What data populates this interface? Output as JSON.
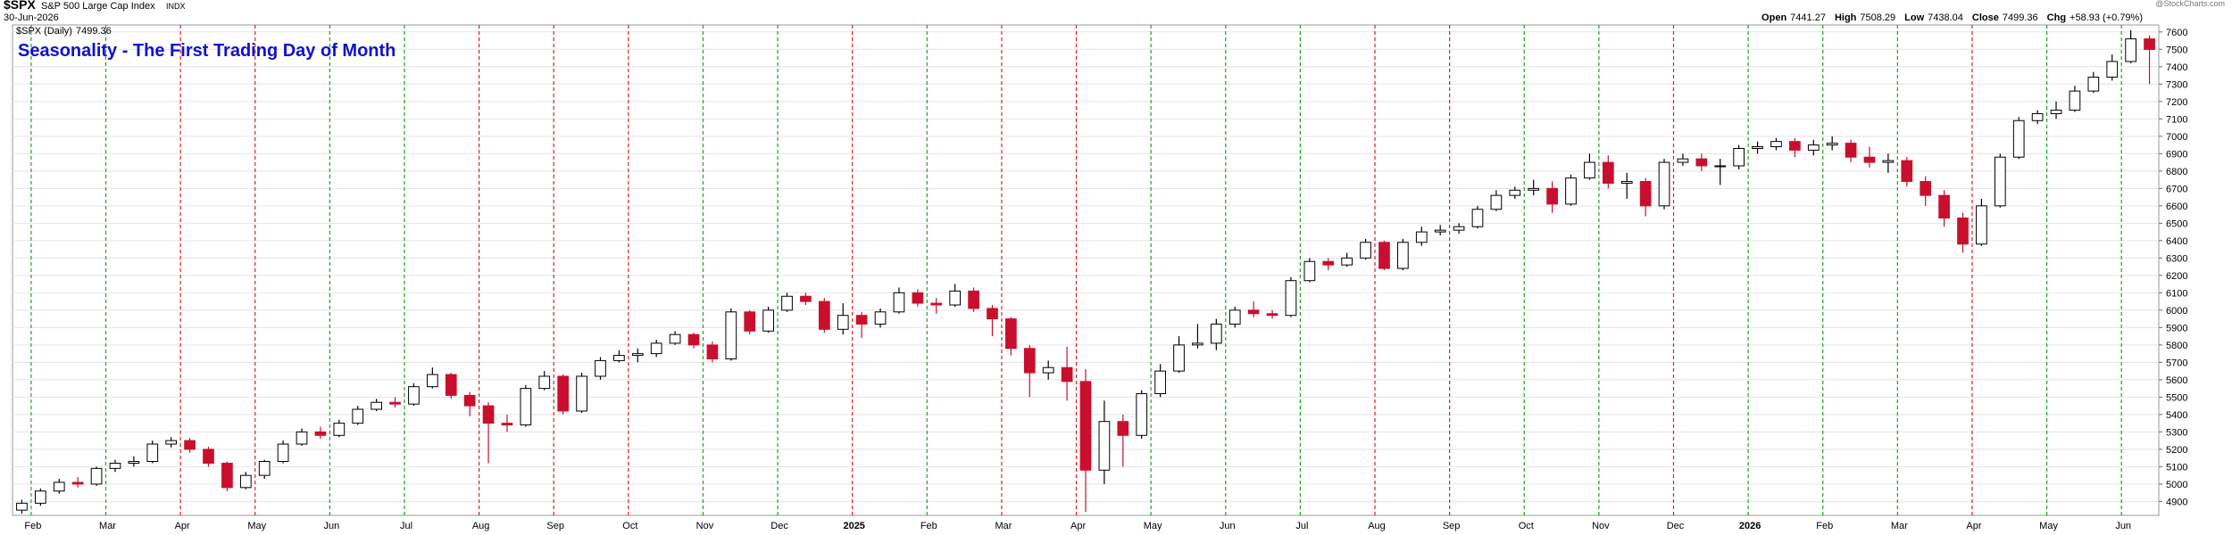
{
  "chart_data": {
    "type": "candlestick",
    "symbol": "$SPX",
    "name": "S&P 500 Large Cap Index",
    "exchange": "INDX",
    "date": "30-Jun-2026",
    "watermark": "@StockCharts.com",
    "legend_label": "$SPX (Daily)",
    "legend_value": 7499.36,
    "title": "Seasonality - The First Trading Day of Month",
    "stats": [
      {
        "label": "Open",
        "value": 7441.27
      },
      {
        "label": "High",
        "value": 7508.29
      },
      {
        "label": "Low",
        "value": 7438.04
      },
      {
        "label": "Close",
        "value": 7499.36
      },
      {
        "label": "Chg",
        "value": "+58.93 (+0.79%)"
      }
    ],
    "categories": [
      null,
      "Feb",
      null,
      null,
      null,
      "Mar",
      null,
      null,
      null,
      "Apr",
      null,
      null,
      null,
      "May",
      null,
      null,
      null,
      "Jun",
      null,
      null,
      null,
      "Jul",
      null,
      null,
      null,
      "Aug",
      null,
      null,
      null,
      "Sep",
      null,
      null,
      null,
      "Oct",
      null,
      null,
      null,
      "Nov",
      null,
      null,
      null,
      "Dec",
      null,
      null,
      null,
      "2025",
      null,
      null,
      null,
      "Feb",
      null,
      null,
      null,
      "Mar",
      null,
      null,
      null,
      "Apr",
      null,
      null,
      null,
      "May",
      null,
      null,
      null,
      "Jun",
      null,
      null,
      null,
      "Jul",
      null,
      null,
      null,
      "Aug",
      null,
      null,
      null,
      "Sep",
      null,
      null,
      null,
      "Oct",
      null,
      null,
      null,
      "Nov",
      null,
      null,
      null,
      "Dec",
      null,
      null,
      null,
      "2026",
      null,
      null,
      null,
      "Feb",
      null,
      null,
      null,
      "Mar",
      null,
      null,
      null,
      "Apr",
      null,
      null,
      null,
      "May",
      null,
      null,
      null,
      "Jun",
      null
    ],
    "month_line_colors": [
      "#1fa31f",
      "#1fa31f",
      "#e02020",
      "#e02020",
      "#1fa31f",
      "#1fa31f",
      "#e02020",
      "#e02020",
      "#e02020",
      "#1fa31f",
      "#1fa31f",
      "#e02020",
      "#1fa31f",
      "#e02020",
      "#e02020",
      "#1fa31f",
      "#1fa31f",
      "#1fa31f",
      "#e02020",
      "#e02020",
      "#1fa31f",
      "#1fa31f",
      "#e02020",
      "#1fa31f",
      "#1fa31f",
      "#1fa31f",
      "#e02020",
      "#1fa31f",
      "#1fa31f"
    ],
    "open": [
      4850,
      4890,
      4960,
      5010,
      5000,
      5090,
      5120,
      5130,
      5230,
      5250,
      5200,
      5120,
      4980,
      5050,
      5130,
      5230,
      5300,
      5280,
      5350,
      5430,
      5470,
      5460,
      5560,
      5630,
      5510,
      5450,
      5350,
      5340,
      5550,
      5620,
      5420,
      5620,
      5710,
      5740,
      5750,
      5810,
      5860,
      5800,
      5720,
      5990,
      5880,
      6000,
      6080,
      6050,
      5890,
      5970,
      5920,
      5990,
      6100,
      6040,
      6030,
      6110,
      6010,
      5950,
      5780,
      5640,
      5670,
      5590,
      5080,
      5360,
      5280,
      5520,
      5650,
      5800,
      5810,
      5920,
      6000,
      5980,
      5970,
      6170,
      6280,
      6260,
      6300,
      6390,
      6240,
      6390,
      6450,
      6460,
      6480,
      6580,
      6660,
      6690,
      6700,
      6610,
      6760,
      6850,
      6730,
      6740,
      6600,
      6850,
      6870,
      6830,
      6830,
      6930,
      6940,
      6970,
      6920,
      6950,
      6960,
      6880,
      6850,
      6860,
      6740,
      6660,
      6530,
      6380,
      6600,
      6880,
      7090,
      7130,
      7150,
      7260,
      7340,
      7430,
      7560
    ],
    "high": [
      4910,
      4975,
      5030,
      5040,
      5100,
      5140,
      5160,
      5250,
      5270,
      5265,
      5215,
      5130,
      5070,
      5140,
      5250,
      5320,
      5330,
      5370,
      5450,
      5490,
      5500,
      5580,
      5670,
      5640,
      5530,
      5470,
      5400,
      5570,
      5650,
      5630,
      5640,
      5730,
      5770,
      5780,
      5830,
      5880,
      5870,
      5820,
      6010,
      6000,
      6020,
      6100,
      6100,
      6070,
      6040,
      5990,
      6010,
      6130,
      6120,
      6070,
      6150,
      6130,
      6030,
      5960,
      5800,
      5710,
      5790,
      5660,
      5480,
      5400,
      5540,
      5690,
      5850,
      5920,
      5950,
      6020,
      6050,
      6000,
      6190,
      6300,
      6300,
      6330,
      6410,
      6400,
      6410,
      6480,
      6490,
      6500,
      6600,
      6690,
      6710,
      6750,
      6740,
      6780,
      6900,
      6890,
      6790,
      6760,
      6870,
      6900,
      6900,
      6870,
      6950,
      6970,
      6990,
      6990,
      6980,
      7000,
      6980,
      6940,
      6900,
      6880,
      6770,
      6690,
      6560,
      6640,
      6900,
      7110,
      7150,
      7200,
      7290,
      7370,
      7470,
      7610,
      7580
    ],
    "low": [
      4830,
      4875,
      4945,
      4980,
      4990,
      5070,
      5100,
      5120,
      5210,
      5180,
      5100,
      4960,
      4970,
      5030,
      5120,
      5220,
      5260,
      5270,
      5340,
      5420,
      5440,
      5450,
      5550,
      5490,
      5390,
      5120,
      5300,
      5330,
      5540,
      5400,
      5410,
      5600,
      5700,
      5700,
      5730,
      5800,
      5780,
      5700,
      5710,
      5860,
      5870,
      5990,
      6030,
      5870,
      5860,
      5840,
      5900,
      5980,
      6020,
      5980,
      6020,
      5990,
      5850,
      5740,
      5500,
      5600,
      5480,
      4840,
      5000,
      5100,
      5260,
      5500,
      5640,
      5780,
      5770,
      5900,
      5960,
      5950,
      5960,
      6160,
      6230,
      6250,
      6290,
      6230,
      6230,
      6370,
      6430,
      6440,
      6470,
      6570,
      6640,
      6660,
      6560,
      6600,
      6750,
      6700,
      6640,
      6540,
      6580,
      6830,
      6800,
      6720,
      6810,
      6900,
      6920,
      6880,
      6890,
      6920,
      6850,
      6820,
      6790,
      6710,
      6600,
      6480,
      6330,
      6370,
      6590,
      6870,
      7070,
      7100,
      7140,
      7250,
      7320,
      7420,
      7300
    ],
    "close": [
      4890,
      4960,
      5010,
      5000,
      5090,
      5120,
      5130,
      5230,
      5250,
      5200,
      5120,
      4980,
      5050,
      5130,
      5230,
      5300,
      5280,
      5350,
      5430,
      5470,
      5460,
      5560,
      5630,
      5510,
      5450,
      5350,
      5340,
      5550,
      5620,
      5420,
      5620,
      5710,
      5740,
      5750,
      5810,
      5860,
      5800,
      5720,
      5990,
      5880,
      6000,
      6080,
      6050,
      5890,
      5970,
      5920,
      5990,
      6100,
      6040,
      6030,
      6110,
      6010,
      5950,
      5780,
      5640,
      5670,
      5590,
      5080,
      5360,
      5280,
      5520,
      5650,
      5800,
      5810,
      5920,
      6000,
      5980,
      5970,
      6170,
      6280,
      6260,
      6300,
      6390,
      6240,
      6390,
      6450,
      6460,
      6480,
      6580,
      6660,
      6690,
      6700,
      6610,
      6760,
      6850,
      6730,
      6740,
      6600,
      6850,
      6870,
      6830,
      6830,
      6930,
      6940,
      6970,
      6920,
      6950,
      6960,
      6880,
      6850,
      6860,
      6740,
      6660,
      6530,
      6380,
      6600,
      6880,
      7090,
      7130,
      7150,
      7260,
      7340,
      7430,
      7560,
      7499.36
    ],
    "up_color": "#000000",
    "down_color": "#c8102e",
    "ylim": [
      4820,
      7640
    ],
    "yticks": [
      4900,
      5000,
      5100,
      5200,
      5300,
      5400,
      5500,
      5600,
      5700,
      5800,
      5900,
      6000,
      6100,
      6200,
      6300,
      6400,
      6500,
      6600,
      6700,
      6800,
      6900,
      7000,
      7100,
      7200,
      7300,
      7400,
      7500,
      7600
    ],
    "grid": true
  }
}
